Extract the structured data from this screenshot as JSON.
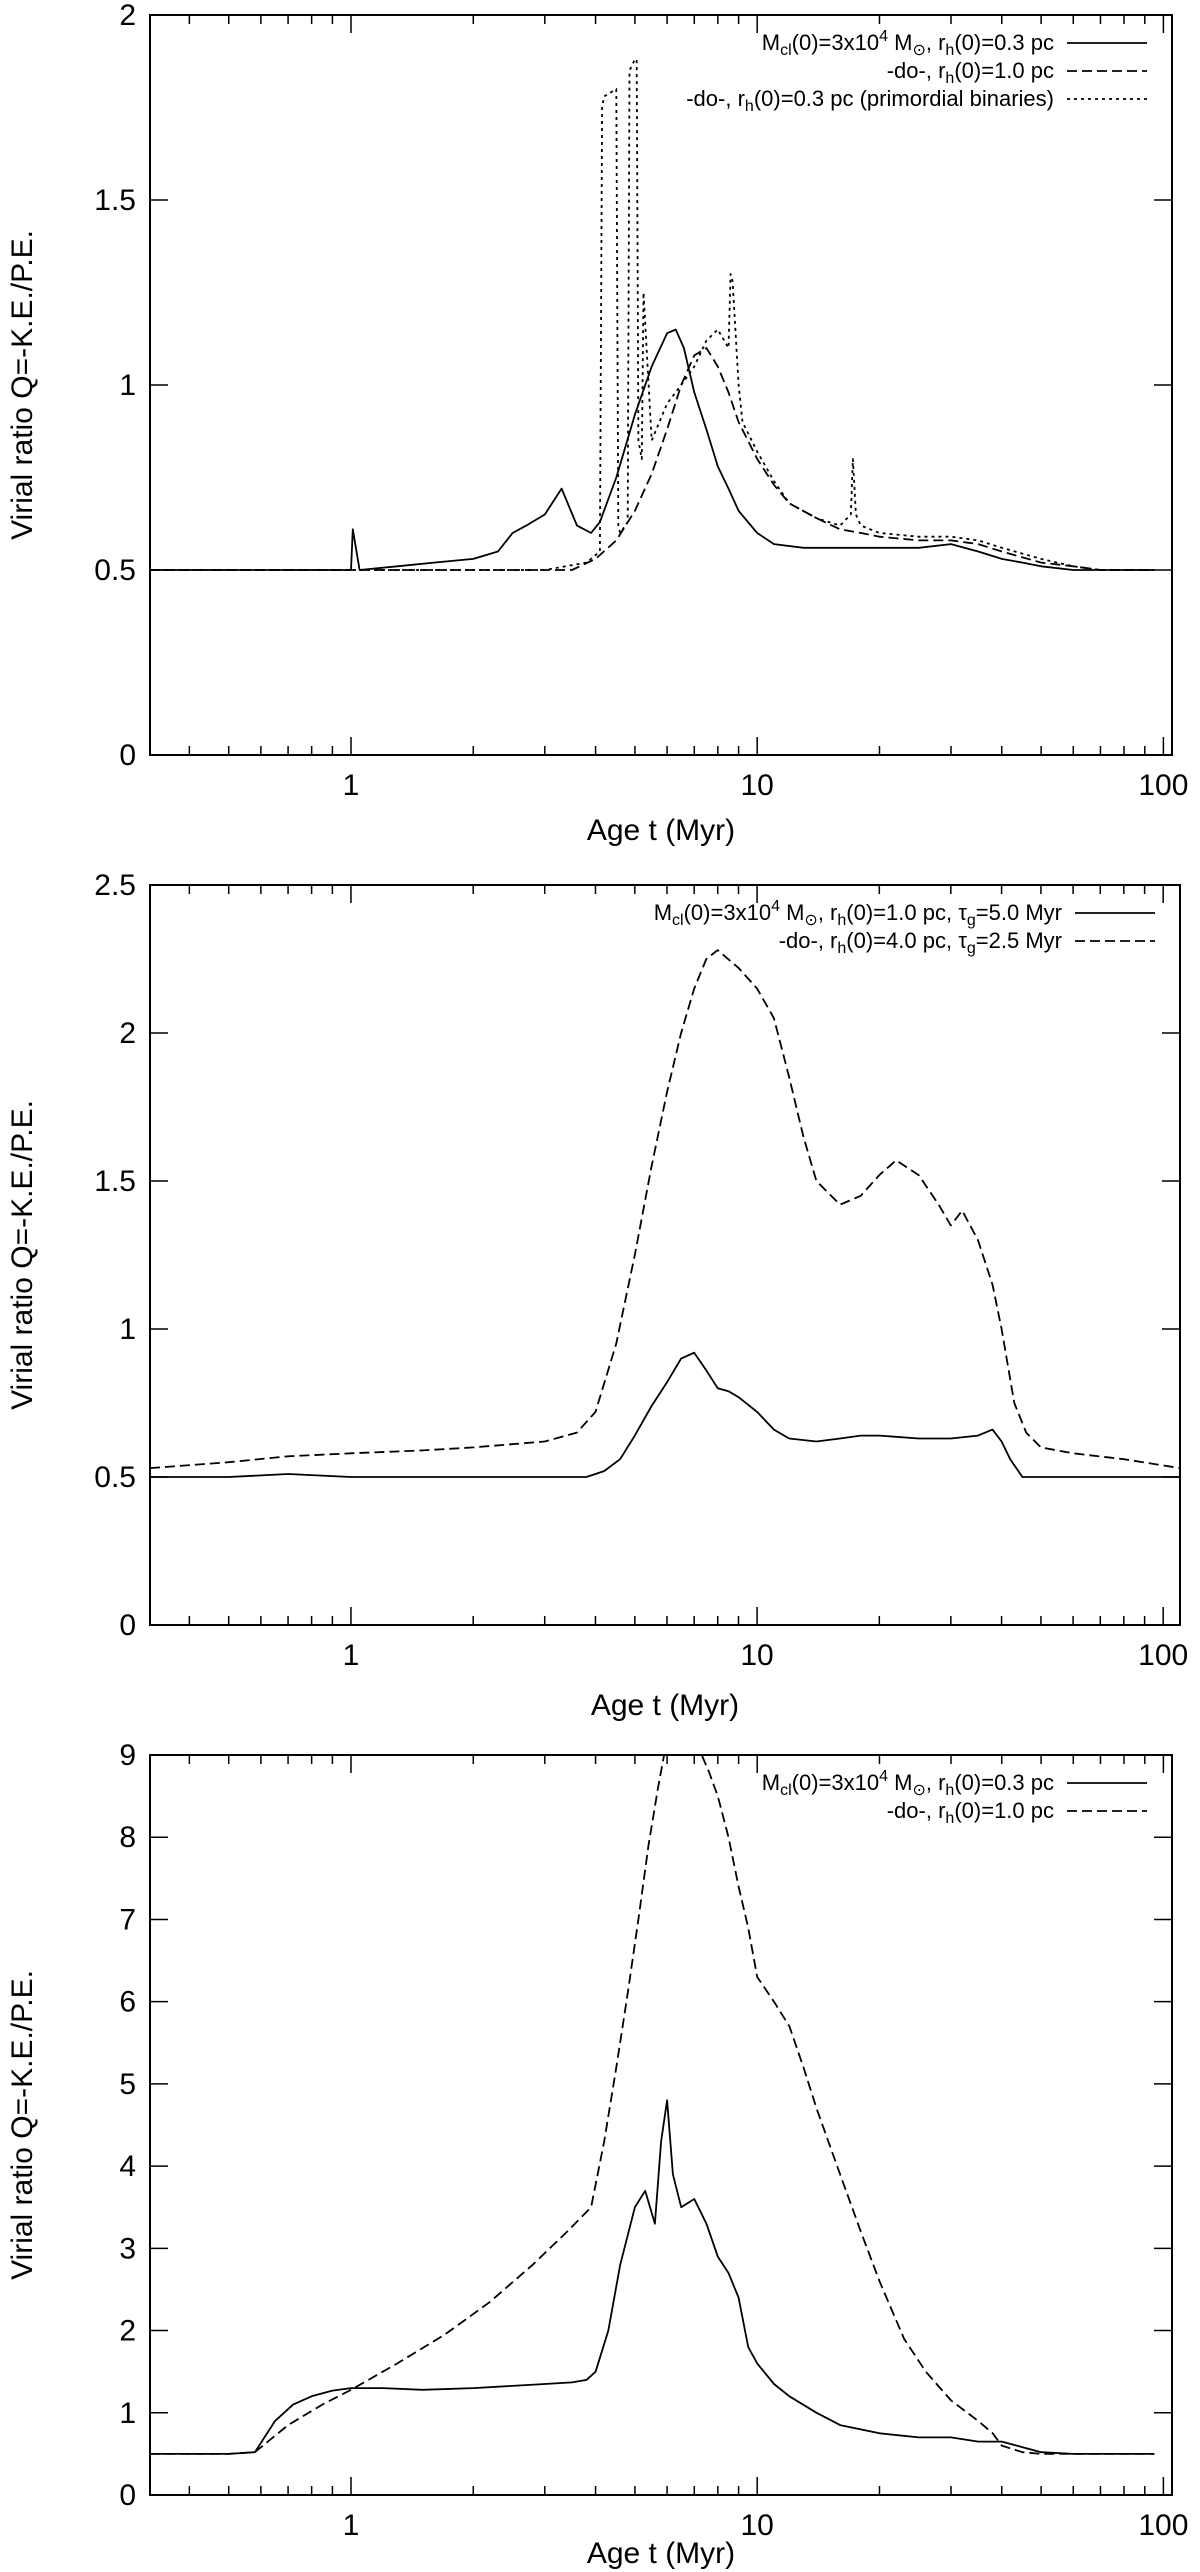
{
  "chart_data": [
    {
      "type": "line",
      "xlabel": "Age t (Myr)",
      "ylabel": "Virial ratio Q=-K.E./P.E.",
      "xscale": "log",
      "xlim": [
        0.32,
        105
      ],
      "ylim": [
        0,
        2
      ],
      "xticks": [
        1,
        10,
        100
      ],
      "xtick_labels": [
        "1",
        "10",
        "100"
      ],
      "yticks": [
        0,
        0.5,
        1,
        1.5,
        2
      ],
      "ytick_labels": [
        "0",
        "0.5",
        "1",
        "1.5",
        "2"
      ],
      "legend_position": "top-right",
      "series": [
        {
          "name": "Mcl(0)=3x10^4 M⊙, rh(0)=0.3 pc",
          "legend": {
            "pre": "M",
            "sub1": "cl",
            "mid1": "(0)=3x10",
            "sup": "4",
            "mid2": " M",
            "sub2": "⊙",
            "mid3": ", r",
            "sub3": "h",
            "post": "(0)=0.3 pc"
          },
          "style": "solid",
          "x": [
            0.32,
            0.5,
            0.8,
            0.95,
            1.0,
            1.01,
            1.05,
            1.3,
            1.6,
            2.0,
            2.3,
            2.5,
            2.7,
            3.0,
            3.3,
            3.6,
            3.9,
            4.1,
            4.5,
            5.0,
            5.5,
            6.0,
            6.3,
            6.6,
            7.0,
            7.5,
            8.0,
            8.5,
            9.0,
            10,
            11,
            13,
            16,
            20,
            25,
            30,
            35,
            40,
            45,
            50,
            60,
            70,
            95
          ],
          "y": [
            0.5,
            0.5,
            0.5,
            0.5,
            0.5,
            0.61,
            0.5,
            0.51,
            0.52,
            0.53,
            0.55,
            0.6,
            0.62,
            0.65,
            0.72,
            0.62,
            0.6,
            0.63,
            0.75,
            0.92,
            1.05,
            1.14,
            1.15,
            1.1,
            0.98,
            0.88,
            0.78,
            0.72,
            0.66,
            0.6,
            0.57,
            0.56,
            0.56,
            0.56,
            0.56,
            0.57,
            0.55,
            0.53,
            0.52,
            0.51,
            0.5,
            0.5,
            0.5
          ]
        },
        {
          "name": "-do-, rh(0)=1.0 pc",
          "legend": {
            "pre": "-do-, r",
            "sub1": "h",
            "post": "(0)=1.0 pc"
          },
          "style": "dashed",
          "x": [
            0.32,
            1,
            2,
            3,
            3.5,
            4.0,
            4.5,
            5.0,
            5.5,
            6.0,
            6.5,
            7.0,
            7.5,
            8.0,
            8.5,
            9.0,
            10,
            11,
            12,
            14,
            16,
            18,
            20,
            25,
            30,
            35,
            40,
            50,
            60,
            70,
            95
          ],
          "y": [
            0.5,
            0.5,
            0.5,
            0.5,
            0.5,
            0.53,
            0.58,
            0.66,
            0.76,
            0.88,
            1.0,
            1.08,
            1.1,
            1.05,
            0.98,
            0.9,
            0.8,
            0.73,
            0.68,
            0.64,
            0.61,
            0.6,
            0.59,
            0.58,
            0.58,
            0.57,
            0.55,
            0.52,
            0.51,
            0.5,
            0.5
          ]
        },
        {
          "name": "-do-, rh(0)=0.3 pc (primordial binaries)",
          "legend": {
            "pre": "-do-, r",
            "sub1": "h",
            "post": "(0)=0.3 pc (primordial binaries)"
          },
          "style": "dotted",
          "x": [
            0.32,
            1,
            2,
            3,
            3.8,
            4.1,
            4.15,
            4.2,
            4.5,
            4.55,
            4.6,
            4.8,
            4.85,
            5.0,
            5.05,
            5.1,
            5.2,
            5.25,
            5.5,
            6.0,
            6.5,
            7.0,
            7.5,
            8.0,
            8.5,
            8.6,
            8.7,
            9.0,
            9.2,
            10,
            11,
            12,
            14,
            16,
            17,
            17.2,
            17.5,
            18,
            20,
            25,
            30,
            35,
            40,
            50,
            60,
            70,
            95
          ],
          "y": [
            0.5,
            0.5,
            0.5,
            0.5,
            0.52,
            0.55,
            1.75,
            1.78,
            1.8,
            0.62,
            0.6,
            0.63,
            1.85,
            1.88,
            1.88,
            0.85,
            0.8,
            1.25,
            0.85,
            0.95,
            1.0,
            1.05,
            1.12,
            1.15,
            1.1,
            1.3,
            1.28,
            1.0,
            0.9,
            0.82,
            0.74,
            0.68,
            0.64,
            0.62,
            0.65,
            0.8,
            0.65,
            0.62,
            0.6,
            0.59,
            0.59,
            0.58,
            0.56,
            0.53,
            0.51,
            0.5,
            0.5
          ]
        }
      ]
    },
    {
      "type": "line",
      "xlabel": "Age t (Myr)",
      "ylabel": "Virial ratio Q=-K.E./P.E.",
      "xscale": "log",
      "xlim": [
        0.32,
        110
      ],
      "ylim": [
        0,
        2.5
      ],
      "xticks": [
        1,
        10,
        100
      ],
      "xtick_labels": [
        "1",
        "10",
        "100"
      ],
      "yticks": [
        0,
        0.5,
        1,
        1.5,
        2,
        2.5
      ],
      "ytick_labels": [
        "0",
        "0.5",
        "1",
        "1.5",
        "2",
        "2.5"
      ],
      "legend_position": "top-right",
      "series": [
        {
          "name": "Mcl(0)=3x10^4 M⊙, rh(0)=1.0 pc, τg=5.0 Myr",
          "legend": {
            "pre": "M",
            "sub1": "cl",
            "mid1": "(0)=3x10",
            "sup": "4",
            "mid2": " M",
            "sub2": "⊙",
            "mid3": ", r",
            "sub3": "h",
            "mid4": "(0)=1.0 pc, τ",
            "sub4": "g",
            "post": "=5.0 Myr"
          },
          "style": "solid",
          "x": [
            0.32,
            0.5,
            0.7,
            1.0,
            1.5,
            2.0,
            3.0,
            3.8,
            4.2,
            4.6,
            5.0,
            5.5,
            6.0,
            6.5,
            7.0,
            7.5,
            8.0,
            8.5,
            9.0,
            10,
            11,
            12,
            14,
            16,
            18,
            20,
            25,
            30,
            35,
            38,
            40,
            42,
            45,
            50,
            60,
            80,
            110
          ],
          "y": [
            0.5,
            0.5,
            0.51,
            0.5,
            0.5,
            0.5,
            0.5,
            0.5,
            0.52,
            0.56,
            0.64,
            0.74,
            0.82,
            0.9,
            0.92,
            0.86,
            0.8,
            0.79,
            0.77,
            0.72,
            0.66,
            0.63,
            0.62,
            0.63,
            0.64,
            0.64,
            0.63,
            0.63,
            0.64,
            0.66,
            0.62,
            0.56,
            0.5,
            0.5,
            0.5,
            0.5,
            0.5
          ]
        },
        {
          "name": "-do-, rh(0)=4.0 pc, τg=2.5 Myr",
          "legend": {
            "pre": "-do-, r",
            "sub1": "h",
            "mid1": "(0)=4.0 pc, τ",
            "sub2": "g",
            "post": "=2.5 Myr"
          },
          "style": "dashed",
          "x": [
            0.32,
            0.5,
            0.7,
            1.0,
            1.5,
            2.0,
            3.0,
            3.6,
            4.0,
            4.5,
            5.0,
            5.5,
            6.0,
            6.5,
            7.0,
            7.5,
            8.0,
            9.0,
            10,
            11,
            12,
            13,
            14,
            16,
            18,
            20,
            22,
            25,
            28,
            30,
            32,
            35,
            38,
            40,
            43,
            46,
            50,
            60,
            80,
            110
          ],
          "y": [
            0.53,
            0.55,
            0.57,
            0.58,
            0.59,
            0.6,
            0.62,
            0.65,
            0.72,
            0.95,
            1.25,
            1.55,
            1.8,
            2.0,
            2.15,
            2.25,
            2.28,
            2.22,
            2.15,
            2.05,
            1.85,
            1.65,
            1.5,
            1.42,
            1.45,
            1.52,
            1.57,
            1.52,
            1.42,
            1.35,
            1.4,
            1.3,
            1.15,
            1.0,
            0.75,
            0.65,
            0.6,
            0.58,
            0.56,
            0.53
          ]
        }
      ]
    },
    {
      "type": "line",
      "xlabel": "Age t (Myr)",
      "ylabel": "Virial ratio Q=-K.E./P.E.",
      "xscale": "log",
      "xlim": [
        0.32,
        105
      ],
      "ylim": [
        0,
        9
      ],
      "xticks": [
        1,
        10,
        100
      ],
      "xtick_labels": [
        "1",
        "10",
        "100"
      ],
      "yticks": [
        0,
        1,
        2,
        3,
        4,
        5,
        6,
        7,
        8,
        9
      ],
      "ytick_labels": [
        "0",
        "1",
        "2",
        "3",
        "4",
        "5",
        "6",
        "7",
        "8",
        "9"
      ],
      "legend_position": "top-right",
      "series": [
        {
          "name": "Mcl(0)=3x10^4 M⊙, rh(0)=0.3 pc",
          "legend": {
            "pre": "M",
            "sub1": "cl",
            "mid1": "(0)=3x10",
            "sup": "4",
            "mid2": " M",
            "sub2": "⊙",
            "mid3": ", r",
            "sub3": "h",
            "post": "(0)=0.3 pc"
          },
          "style": "solid",
          "x": [
            0.32,
            0.5,
            0.58,
            0.65,
            0.72,
            0.8,
            0.9,
            1.0,
            1.2,
            1.5,
            2.0,
            3.0,
            3.5,
            3.8,
            4.0,
            4.3,
            4.6,
            5.0,
            5.3,
            5.6,
            5.8,
            6.0,
            6.2,
            6.5,
            7.0,
            7.5,
            8.0,
            8.5,
            9.0,
            9.5,
            10,
            11,
            12,
            14,
            16,
            20,
            25,
            30,
            35,
            40,
            50,
            60,
            80,
            95
          ],
          "y": [
            0.5,
            0.5,
            0.52,
            0.9,
            1.1,
            1.2,
            1.27,
            1.3,
            1.3,
            1.28,
            1.3,
            1.35,
            1.37,
            1.4,
            1.5,
            2.0,
            2.8,
            3.5,
            3.7,
            3.3,
            4.3,
            4.8,
            3.9,
            3.5,
            3.6,
            3.3,
            2.9,
            2.7,
            2.4,
            1.8,
            1.6,
            1.35,
            1.2,
            1.0,
            0.85,
            0.75,
            0.7,
            0.7,
            0.65,
            0.65,
            0.52,
            0.5,
            0.5,
            0.5
          ]
        },
        {
          "name": "-do-, rh(0)=1.0 pc",
          "legend": {
            "pre": "-do-, r",
            "sub1": "h",
            "post": "(0)=1.0 pc"
          },
          "style": "dashed",
          "x": [
            0.32,
            0.5,
            0.58,
            0.7,
            0.85,
            1.0,
            1.3,
            1.7,
            2.2,
            2.8,
            3.4,
            3.9,
            4.2,
            4.5,
            4.8,
            5.1,
            5.4,
            5.7,
            5.9,
            7.3,
            7.6,
            8.0,
            8.5,
            9.0,
            9.5,
            10,
            11,
            12,
            13,
            14,
            16,
            18,
            20,
            23,
            26,
            30,
            35,
            38,
            40,
            45,
            50,
            60,
            80,
            95
          ],
          "y": [
            0.5,
            0.5,
            0.52,
            0.85,
            1.1,
            1.28,
            1.6,
            1.95,
            2.35,
            2.8,
            3.2,
            3.5,
            4.3,
            5.2,
            6.1,
            7.0,
            7.9,
            8.6,
            9.0,
            9.0,
            8.8,
            8.5,
            8.0,
            7.4,
            6.9,
            6.3,
            6.0,
            5.7,
            5.2,
            4.7,
            3.9,
            3.2,
            2.6,
            1.9,
            1.5,
            1.15,
            0.9,
            0.75,
            0.6,
            0.52,
            0.5,
            0.5,
            0.5,
            0.5
          ]
        }
      ]
    }
  ]
}
